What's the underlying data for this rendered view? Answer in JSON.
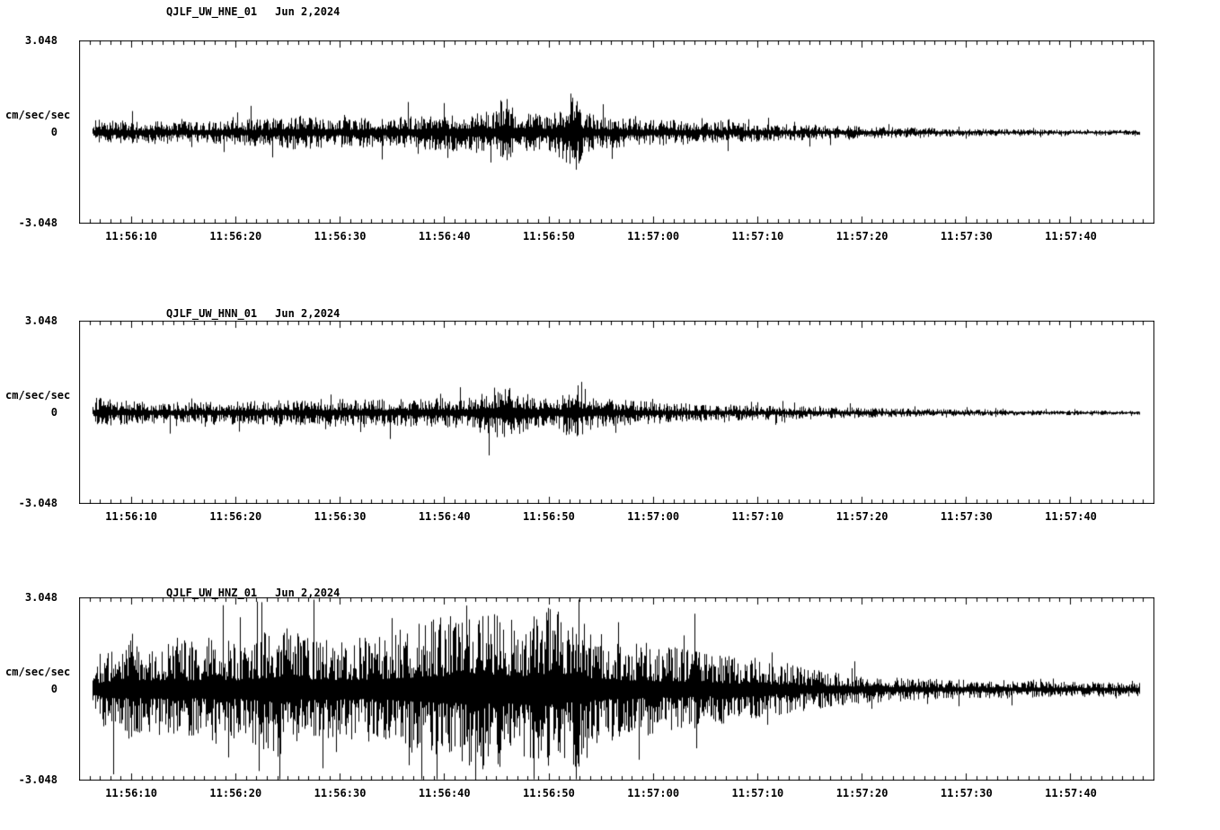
{
  "colors": {
    "background": "#ffffff",
    "trace": "#000000",
    "text": "#000000"
  },
  "y_axis": {
    "max_label": "3.048",
    "zero_label": "0",
    "min_label": "-3.048",
    "unit_label": "cm/sec/sec",
    "limit": 3.048
  },
  "x_axis": {
    "tick_labels": [
      "11:56:10",
      "11:56:20",
      "11:56:30",
      "11:56:40",
      "11:56:50",
      "11:57:00",
      "11:57:10",
      "11:57:20",
      "11:57:30",
      "11:57:40"
    ],
    "first_tick_offset_sec": 5,
    "tick_interval_sec": 10,
    "total_duration_sec": 103,
    "start_time": "11:56:05"
  },
  "chart_data": [
    {
      "type": "line",
      "station": "QJLF_UW_HNE_01",
      "date": "Jun 2,2024",
      "ylabel": "cm/sec/sec",
      "ylim": [
        -3.048,
        3.048
      ],
      "x_start_time": "11:56:05",
      "x_end_time": "11:57:48",
      "x_tick_labels": [
        "11:56:10",
        "11:56:20",
        "11:56:30",
        "11:56:40",
        "11:56:50",
        "11:57:00",
        "11:57:10",
        "11:57:20",
        "11:57:30",
        "11:57:40"
      ],
      "seed": 101,
      "t_range": [
        1.3,
        101.5
      ],
      "envelope_description": "approximate peak amplitude envelope [seconds after 11:56:05, cm/sec/sec]",
      "envelope": [
        [
          1.2,
          0.03
        ],
        [
          1.6,
          0.5
        ],
        [
          3,
          0.42
        ],
        [
          6,
          0.4
        ],
        [
          10,
          0.38
        ],
        [
          14,
          0.42
        ],
        [
          18,
          0.48
        ],
        [
          21,
          0.6
        ],
        [
          24,
          0.5
        ],
        [
          28,
          0.52
        ],
        [
          32,
          0.55
        ],
        [
          35,
          0.62
        ],
        [
          38,
          0.7
        ],
        [
          40,
          0.75
        ],
        [
          40.8,
          1.45
        ],
        [
          41.6,
          0.85
        ],
        [
          43,
          0.7
        ],
        [
          45,
          0.62
        ],
        [
          47.6,
          1.3
        ],
        [
          48.4,
          0.7
        ],
        [
          50,
          0.55
        ],
        [
          53,
          0.5
        ],
        [
          56,
          0.45
        ],
        [
          60,
          0.38
        ],
        [
          64,
          0.33
        ],
        [
          68,
          0.28
        ],
        [
          72,
          0.24
        ],
        [
          76,
          0.2
        ],
        [
          80,
          0.17
        ],
        [
          84,
          0.14
        ],
        [
          88,
          0.12
        ],
        [
          92,
          0.1
        ],
        [
          96,
          0.09
        ],
        [
          101.5,
          0.08
        ]
      ]
    },
    {
      "type": "line",
      "station": "QJLF_UW_HNN_01",
      "date": "Jun 2,2024",
      "ylabel": "cm/sec/sec",
      "ylim": [
        -3.048,
        3.048
      ],
      "x_start_time": "11:56:05",
      "x_end_time": "11:57:48",
      "x_tick_labels": [
        "11:56:10",
        "11:56:20",
        "11:56:30",
        "11:56:40",
        "11:56:50",
        "11:57:00",
        "11:57:10",
        "11:57:20",
        "11:57:30",
        "11:57:40"
      ],
      "seed": 202,
      "t_range": [
        1.3,
        101.5
      ],
      "envelope_description": "approximate peak amplitude envelope [seconds after 11:56:05, cm/sec/sec]",
      "envelope": [
        [
          1.2,
          0.03
        ],
        [
          1.6,
          0.55
        ],
        [
          3,
          0.45
        ],
        [
          6,
          0.38
        ],
        [
          10,
          0.36
        ],
        [
          14,
          0.4
        ],
        [
          18,
          0.42
        ],
        [
          22,
          0.46
        ],
        [
          26,
          0.48
        ],
        [
          30,
          0.46
        ],
        [
          34,
          0.5
        ],
        [
          37,
          0.55
        ],
        [
          39.5,
          0.8
        ],
        [
          40.8,
          1.05
        ],
        [
          42,
          0.75
        ],
        [
          44,
          0.6
        ],
        [
          46,
          0.55
        ],
        [
          47.6,
          1.15
        ],
        [
          48.4,
          0.65
        ],
        [
          50,
          0.5
        ],
        [
          53,
          0.42
        ],
        [
          56,
          0.36
        ],
        [
          60,
          0.3
        ],
        [
          64,
          0.27
        ],
        [
          68,
          0.23
        ],
        [
          72,
          0.2
        ],
        [
          76,
          0.17
        ],
        [
          80,
          0.14
        ],
        [
          84,
          0.12
        ],
        [
          88,
          0.1
        ],
        [
          92,
          0.09
        ],
        [
          96,
          0.08
        ],
        [
          101.5,
          0.07
        ]
      ]
    },
    {
      "type": "line",
      "station": "QJLF_UW_HNZ_01",
      "date": "Jun 2,2024",
      "ylabel": "cm/sec/sec",
      "ylim": [
        -3.048,
        3.048
      ],
      "x_start_time": "11:56:05",
      "x_end_time": "11:57:48",
      "x_tick_labels": [
        "11:56:10",
        "11:56:20",
        "11:56:30",
        "11:56:40",
        "11:56:50",
        "11:57:00",
        "11:57:10",
        "11:57:20",
        "11:57:30",
        "11:57:40"
      ],
      "seed": 303,
      "t_range": [
        1.3,
        101.5
      ],
      "envelope_description": "approximate peak amplitude envelope [seconds after 11:56:05, cm/sec/sec]",
      "envelope": [
        [
          1.2,
          0.05
        ],
        [
          1.6,
          1.1
        ],
        [
          3,
          1.5
        ],
        [
          5,
          1.7
        ],
        [
          7,
          1.5
        ],
        [
          9,
          1.8
        ],
        [
          11,
          1.6
        ],
        [
          13,
          1.9
        ],
        [
          15,
          1.7
        ],
        [
          17,
          2.0
        ],
        [
          19,
          2.3
        ],
        [
          21,
          1.9
        ],
        [
          23,
          1.7
        ],
        [
          25,
          1.65
        ],
        [
          27,
          1.8
        ],
        [
          29,
          1.9
        ],
        [
          31,
          2.1
        ],
        [
          33,
          2.3
        ],
        [
          35,
          2.5
        ],
        [
          37,
          2.6
        ],
        [
          39,
          2.7
        ],
        [
          41,
          2.6
        ],
        [
          43,
          2.5
        ],
        [
          44.5,
          2.9
        ],
        [
          46,
          2.5
        ],
        [
          47,
          2.3
        ],
        [
          47.8,
          2.95
        ],
        [
          48.6,
          2.2
        ],
        [
          50,
          1.9
        ],
        [
          52,
          1.7
        ],
        [
          54,
          1.6
        ],
        [
          56,
          1.5
        ],
        [
          58,
          1.4
        ],
        [
          60,
          1.3
        ],
        [
          62,
          1.15
        ],
        [
          64,
          1.05
        ],
        [
          66,
          0.95
        ],
        [
          68,
          0.85
        ],
        [
          70,
          0.7
        ],
        [
          72,
          0.6
        ],
        [
          75,
          0.5
        ],
        [
          78,
          0.42
        ],
        [
          81,
          0.38
        ],
        [
          84,
          0.34
        ],
        [
          88,
          0.3
        ],
        [
          92,
          0.28
        ],
        [
          96,
          0.26
        ],
        [
          101.5,
          0.25
        ]
      ]
    }
  ]
}
